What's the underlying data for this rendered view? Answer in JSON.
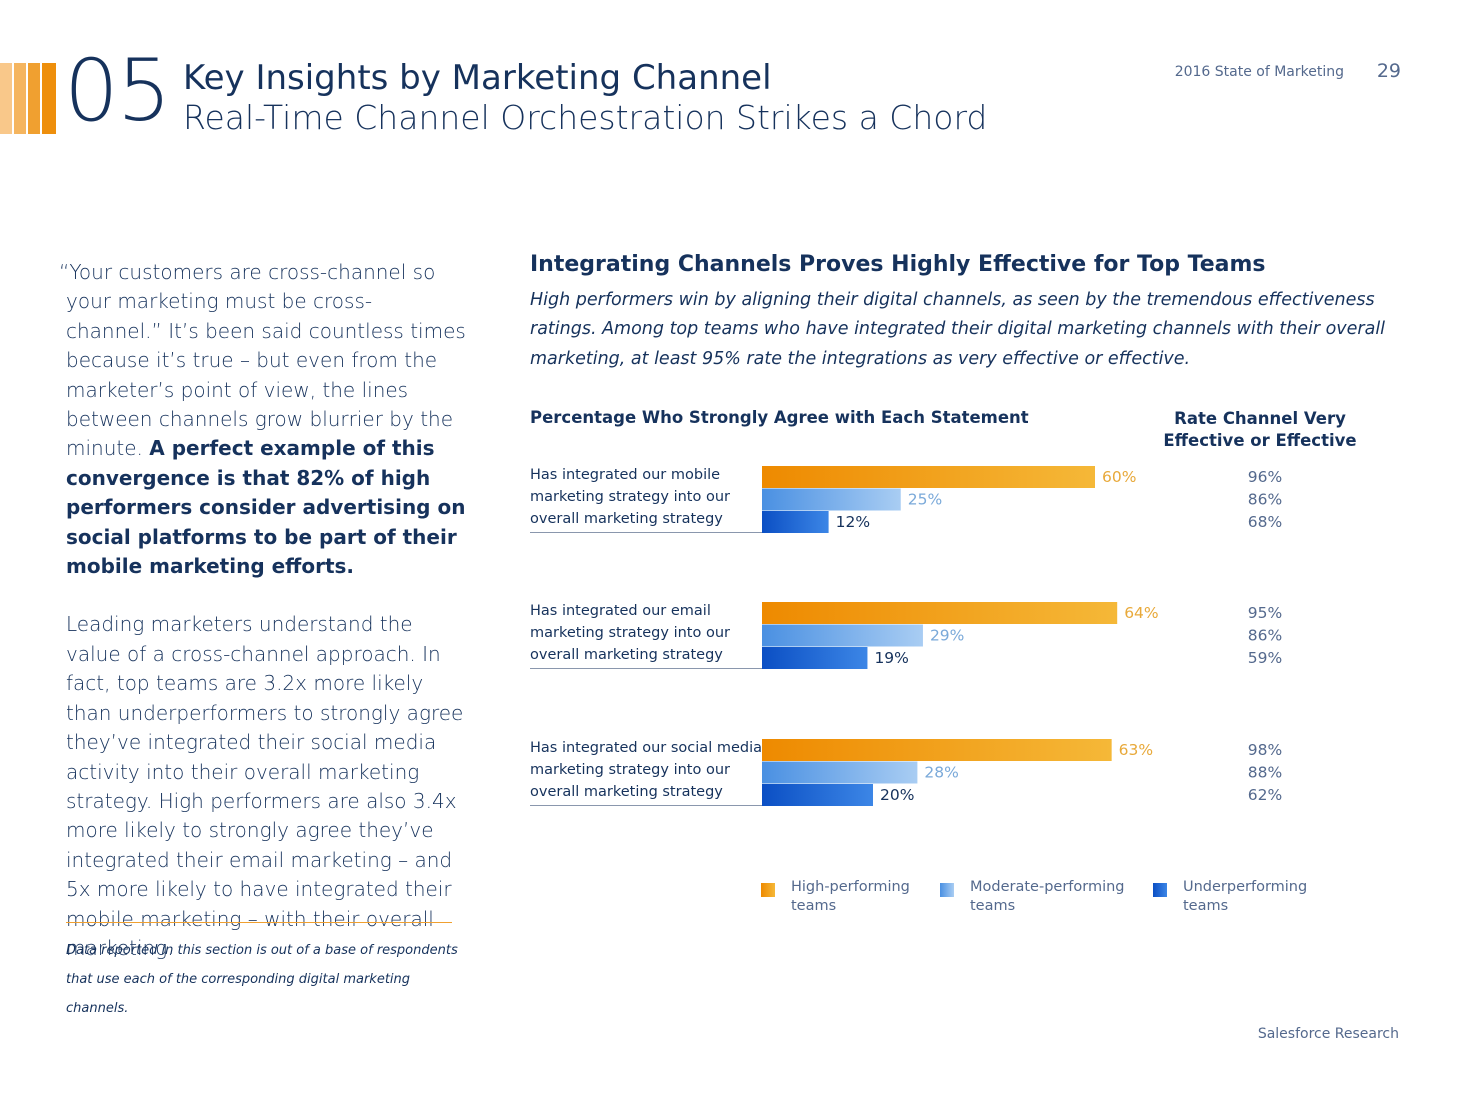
{
  "header": {
    "chapter_number": "05",
    "title": "Key Insights by Marketing Channel",
    "subtitle": "Real-Time Channel Orchestration Strikes a Chord",
    "report_name": "2016 State of Marketing",
    "page_number": "29",
    "stripe_colors": [
      "#f9c88a",
      "#f5b55f",
      "#f0a030",
      "#ee8f0c"
    ]
  },
  "body": {
    "p1_start": "“Your customers are cross-channel so your marketing must be cross-channel.” It’s been said countless times because it’s true – but even from the marketer’s point of view, the lines between channels grow blurrier by the minute. ",
    "p1_bold": "A perfect example of this convergence is that 82% of high performers consider advertising on social platforms to be part of their mobile marketing efforts.",
    "p2": "Leading marketers understand the value of a cross-channel approach. In fact, top teams are 3.2x more likely than underperformers to strongly agree they’ve integrated their social media activity into their overall marketing strategy. High performers are also 3.4x more likely to strongly agree they’ve integrated their email marketing – and 5x more likely to have integrated their mobile marketing – with their overall marketing.",
    "footnote": "Data reported in this section is out of a base of respondents that use each of the corresponding digital marketing channels."
  },
  "chart_data": {
    "type": "bar",
    "orientation": "horizontal",
    "title": "Integrating Channels Proves Highly Effective for Top Teams",
    "subtitle": "High performers win by aligning their digital channels, as seen by the tremendous effectiveness ratings. Among top teams who have integrated their digital marketing channels with their overall marketing, at least 95% rate the integrations as very effective or effective.",
    "left_header": "Percentage Who Strongly Agree with Each Statement",
    "right_header": "Rate Channel Very Effective or Effective",
    "categories": [
      [
        "Has integrated our mobile",
        "marketing strategy into our",
        "overall marketing strategy"
      ],
      [
        "Has integrated our email",
        "marketing strategy into our",
        "overall marketing strategy"
      ],
      [
        "Has integrated our social media",
        "marketing strategy into our",
        "overall marketing strategy"
      ]
    ],
    "series": [
      {
        "name": "High-performing teams",
        "values": [
          60,
          64,
          63
        ],
        "effective": [
          96,
          95,
          98
        ],
        "color_start": "#ee8a00",
        "color_end": "#f5b838",
        "label_color": "#e8a93a"
      },
      {
        "name": "Moderate-performing teams",
        "values": [
          25,
          29,
          28
        ],
        "effective": [
          86,
          86,
          88
        ],
        "color_start": "#4a90e2",
        "color_end": "#a9cdf3",
        "label_color": "#7aa9d9"
      },
      {
        "name": "Underperforming teams",
        "values": [
          12,
          19,
          20
        ],
        "effective": [
          68,
          59,
          62
        ],
        "color_start": "#0b4fc4",
        "color_end": "#3c86e6",
        "label_color": "#16325c"
      }
    ],
    "value_suffix": "%",
    "xlim": [
      0,
      100
    ],
    "legend_position": "bottom"
  },
  "footer": {
    "source": "Salesforce Research"
  }
}
